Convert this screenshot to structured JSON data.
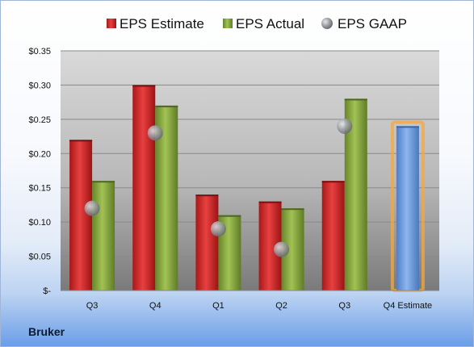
{
  "company": "Bruker",
  "colors": {
    "estimate": "#cc2a2a",
    "actual": "#86a83a",
    "gaap": "#a7a9ad",
    "q4estimate": "#6f9fe0",
    "highlight": "#f5a742"
  },
  "chart_data": {
    "type": "bar",
    "categories": [
      "Q3",
      "Q4",
      "Q1",
      "Q2",
      "Q3",
      "Q4 Estimate"
    ],
    "series": [
      {
        "name": "EPS Estimate",
        "values": [
          0.22,
          0.3,
          0.14,
          0.13,
          0.16,
          0.24
        ]
      },
      {
        "name": "EPS Actual",
        "values": [
          0.16,
          0.27,
          0.11,
          0.12,
          0.28,
          null
        ]
      },
      {
        "name": "EPS GAAP",
        "values": [
          0.12,
          0.23,
          0.09,
          0.06,
          0.24,
          null
        ]
      }
    ],
    "yticks": [
      "$0.35",
      "$0.30",
      "$0.25",
      "$0.20",
      "$0.15",
      "$0.10",
      "$0.05",
      "$-"
    ],
    "ylim": [
      0,
      0.35
    ],
    "legend_position": "top",
    "grid": true
  }
}
